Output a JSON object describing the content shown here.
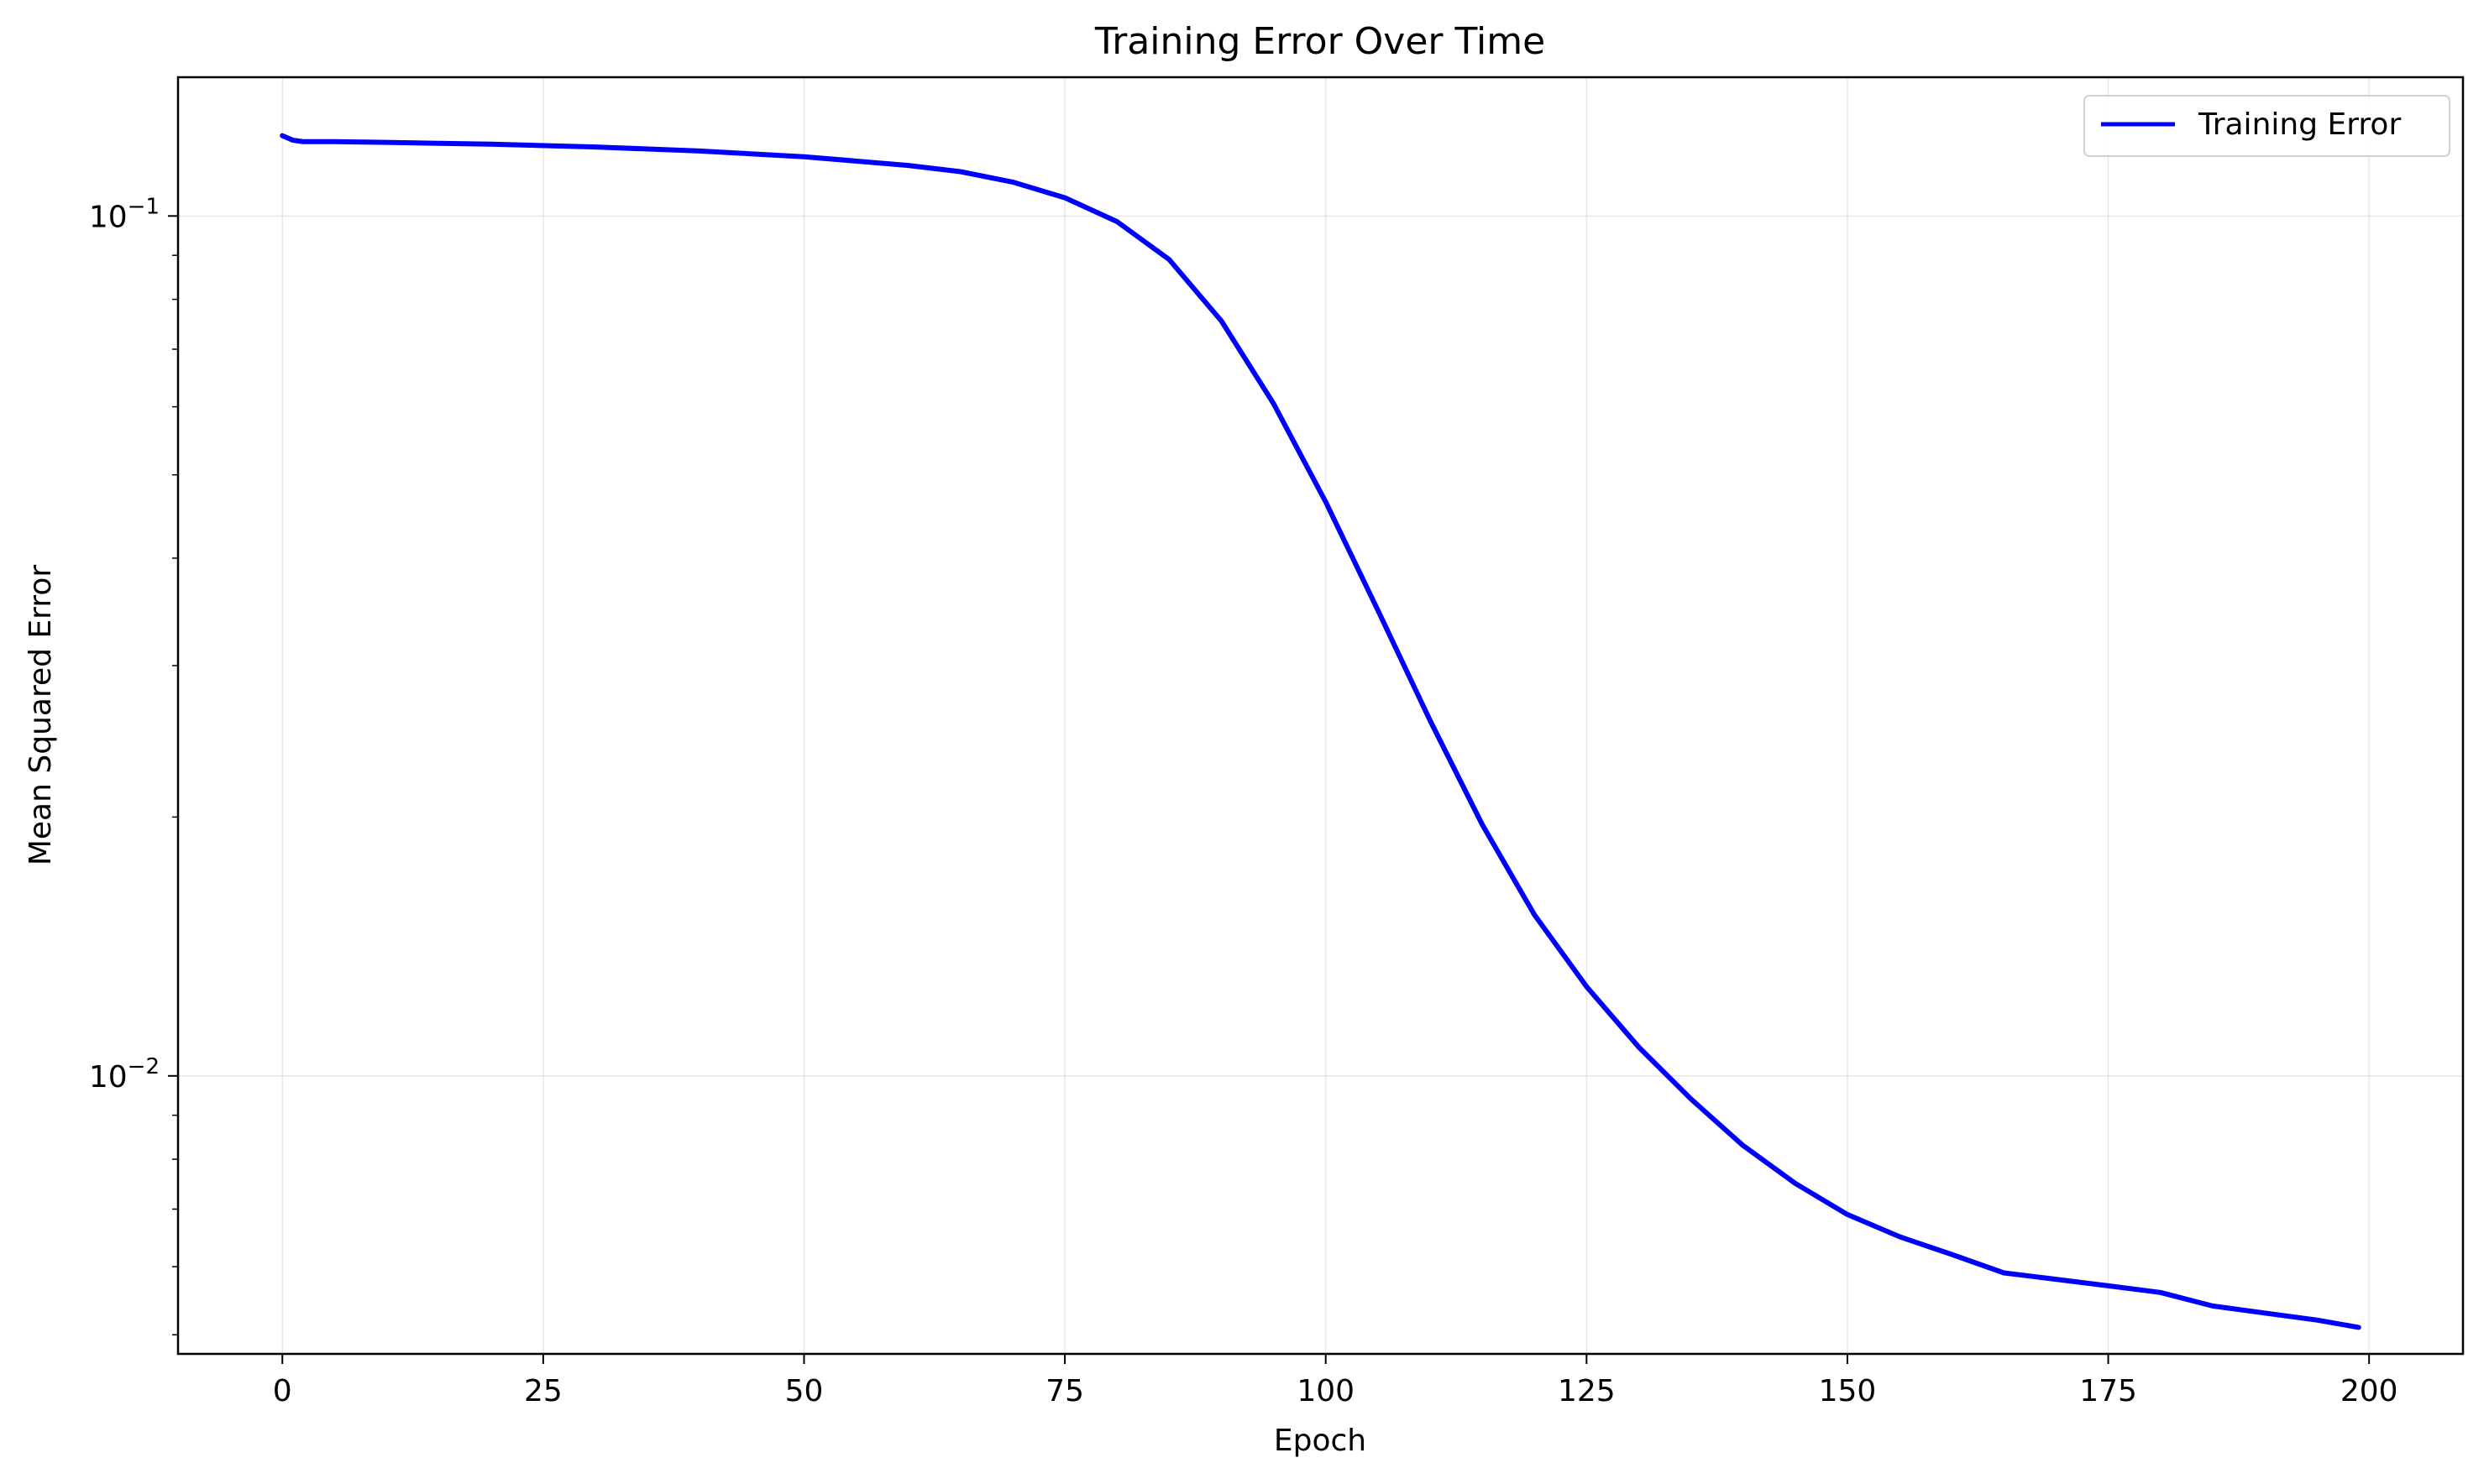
{
  "chart_data": {
    "type": "line",
    "title": "Training Error Over Time",
    "xlabel": "Epoch",
    "ylabel": "Mean Squared Error",
    "yscale": "log",
    "xlim": [
      -10,
      209
    ],
    "ylim": [
      0.00475,
      0.145
    ],
    "grid": true,
    "legend_position": "top-right",
    "x_ticks": [
      "0",
      "25",
      "50",
      "75",
      "100",
      "125",
      "150",
      "175",
      "200"
    ],
    "x_tick_values": [
      0,
      25,
      50,
      75,
      100,
      125,
      150,
      175,
      200
    ],
    "y_major_ticks": [
      0.1,
      0.01
    ],
    "y_major_tick_bases": [
      "10",
      "10"
    ],
    "y_major_tick_exponents": [
      "−1",
      "−2"
    ],
    "y_minor_ticks": [
      0.005,
      0.006,
      0.007,
      0.008,
      0.009,
      0.02,
      0.03,
      0.04,
      0.05,
      0.06,
      0.07,
      0.08,
      0.09
    ],
    "series": [
      {
        "name": "Training Error",
        "color": "#0000ff",
        "x": [
          0,
          1,
          2,
          5,
          10,
          20,
          30,
          40,
          50,
          60,
          65,
          70,
          75,
          80,
          85,
          90,
          95,
          100,
          105,
          110,
          115,
          120,
          125,
          130,
          135,
          140,
          145,
          150,
          155,
          160,
          165,
          170,
          175,
          180,
          185,
          190,
          195,
          199
        ],
        "y": [
          0.124,
          0.1225,
          0.122,
          0.122,
          0.1218,
          0.1212,
          0.1203,
          0.119,
          0.1172,
          0.1145,
          0.1126,
          0.1095,
          0.105,
          0.0985,
          0.089,
          0.0755,
          0.0605,
          0.0465,
          0.0348,
          0.0259,
          0.0196,
          0.0154,
          0.0127,
          0.0108,
          0.0094,
          0.0083,
          0.0075,
          0.0069,
          0.0065,
          0.0062,
          0.0059,
          0.0058,
          0.0057,
          0.0056,
          0.0054,
          0.0053,
          0.0052,
          0.0051
        ]
      }
    ]
  }
}
